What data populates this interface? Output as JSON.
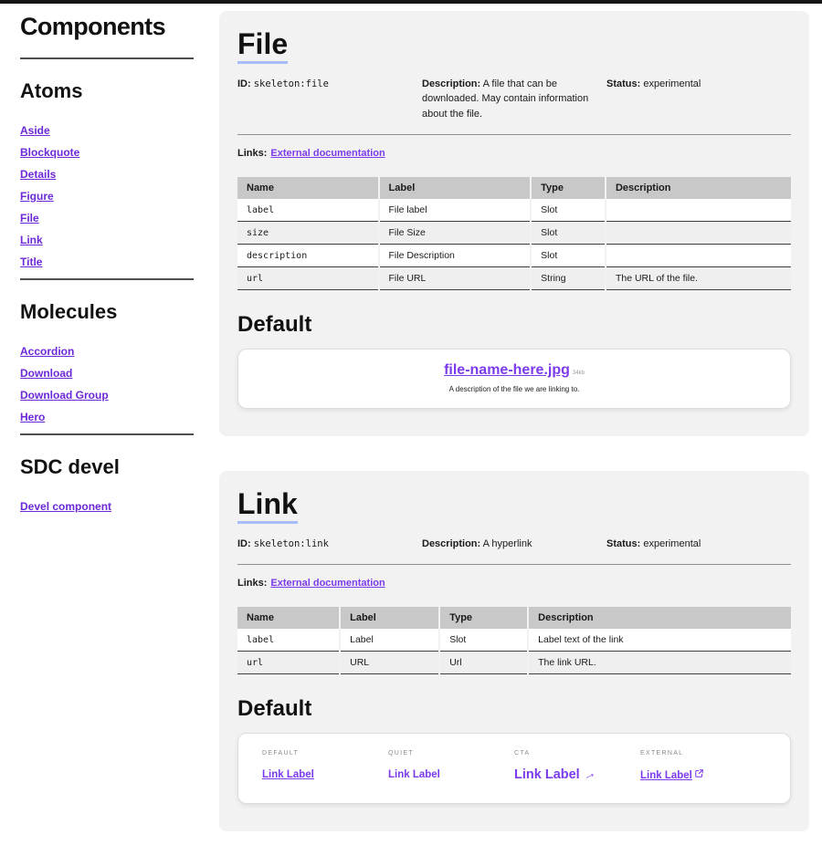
{
  "colors": {
    "accent": "#7c3aed",
    "sidebar_link": "#6d28d9",
    "heading_underline": "#a6bdf7",
    "card_background": "#f2f2f2",
    "table_header_background": "#c8c8c8"
  },
  "icons": {
    "arrow-right-icon": "→",
    "external-link-icon": "box-with-arrow-up-right"
  },
  "sidebar": {
    "title": "Components",
    "sections": [
      {
        "heading": "Atoms",
        "links": [
          "Aside",
          "Blockquote",
          "Details",
          "Figure",
          "File",
          "Link",
          "Title"
        ]
      },
      {
        "heading": "Molecules",
        "links": [
          "Accordion",
          "Download",
          "Download Group",
          "Hero"
        ]
      },
      {
        "heading": "SDC devel",
        "links": [
          "Devel component"
        ]
      }
    ]
  },
  "cards": [
    {
      "title": "File",
      "meta": {
        "id_label": "ID:",
        "id": "skeleton:file",
        "description_label": "Description:",
        "description": "A file that can be downloaded. May contain information about the file.",
        "status_label": "Status:",
        "status": "experimental"
      },
      "links_label": "Links:",
      "links": [
        "External documentation"
      ],
      "table": {
        "headers": [
          "Name",
          "Label",
          "Type",
          "Description"
        ],
        "rows": [
          [
            "label",
            "File label",
            "Slot",
            ""
          ],
          [
            "size",
            "File Size",
            "Slot",
            ""
          ],
          [
            "description",
            "File Description",
            "Slot",
            ""
          ],
          [
            "url",
            "File URL",
            "String",
            "The URL of the file."
          ]
        ]
      },
      "default_heading": "Default",
      "preview": {
        "type": "file",
        "file_link": "file-name-here.jpg",
        "file_size": "34kb",
        "file_description": "A description of the file we are linking to."
      }
    },
    {
      "title": "Link",
      "meta": {
        "id_label": "ID:",
        "id": "skeleton:link",
        "description_label": "Description:",
        "description": "A hyperlink",
        "status_label": "Status:",
        "status": "experimental"
      },
      "links_label": "Links:",
      "links": [
        "External documentation"
      ],
      "table": {
        "headers": [
          "Name",
          "Label",
          "Type",
          "Description"
        ],
        "rows": [
          [
            "label",
            "Label",
            "Slot",
            "Label text of the link"
          ],
          [
            "url",
            "URL",
            "Url",
            "The link URL."
          ]
        ]
      },
      "default_heading": "Default",
      "preview": {
        "type": "link-variants",
        "variants": [
          {
            "label": "DEFAULT",
            "text": "Link Label",
            "style": "default"
          },
          {
            "label": "QUIET",
            "text": "Link Label",
            "style": "quiet"
          },
          {
            "label": "CTA",
            "text": "Link Label",
            "style": "cta",
            "icon": "arrow-right-icon"
          },
          {
            "label": "EXTERNAL",
            "text": "Link Label",
            "style": "external",
            "icon": "external-link-icon"
          }
        ]
      }
    }
  ]
}
